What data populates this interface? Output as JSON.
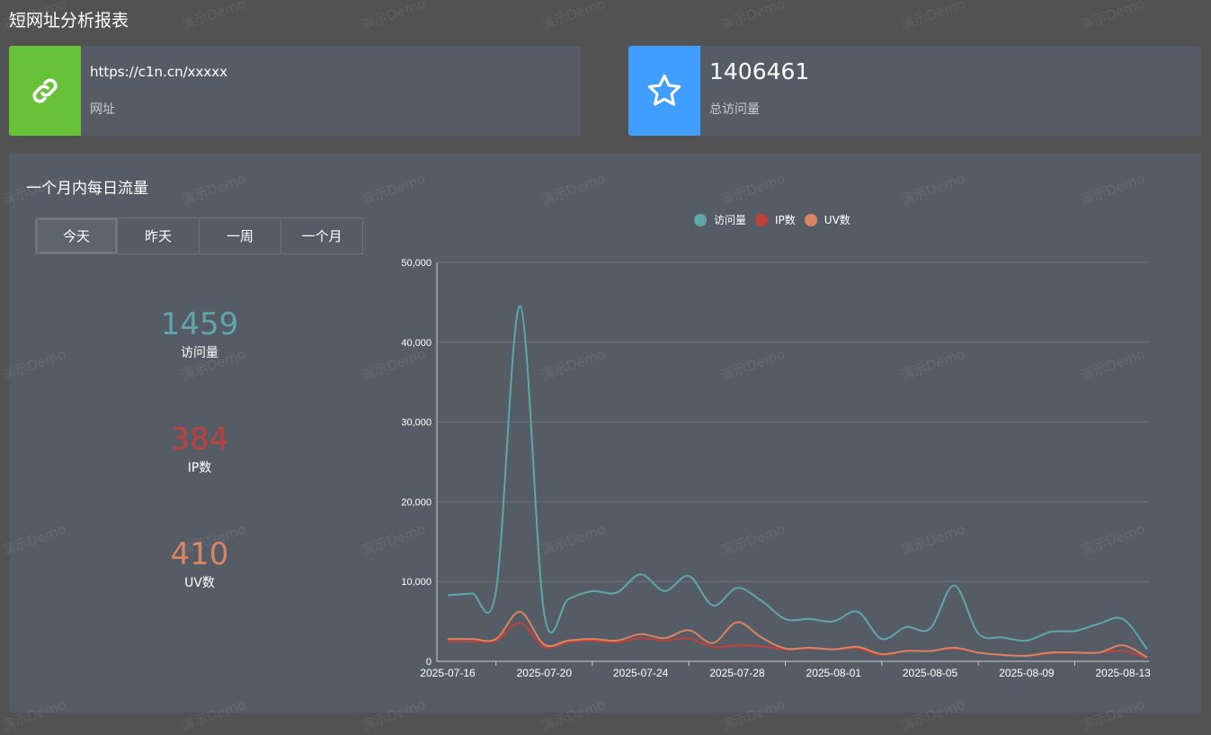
{
  "page": {
    "title": "短网址分析报表"
  },
  "url_card": {
    "value": "https://c1n.cn/xxxxx",
    "label": "网址",
    "icon": "link-icon",
    "color": "#67c23a"
  },
  "visits_card": {
    "value": "1406461",
    "label": "总访问量",
    "icon": "star-icon",
    "color": "#409eff"
  },
  "panel": {
    "title": "一个月内每日流量",
    "tabs": [
      {
        "label": "今天",
        "active": true
      },
      {
        "label": "昨天",
        "active": false
      },
      {
        "label": "一周",
        "active": false
      },
      {
        "label": "一个月",
        "active": false
      }
    ],
    "stats": [
      {
        "value": "1459",
        "label": "访问量",
        "color": "#5fa5aa"
      },
      {
        "value": "384",
        "label": "IP数",
        "color": "#c0403a"
      },
      {
        "value": "410",
        "label": "UV数",
        "color": "#d98462"
      }
    ]
  },
  "watermark": "演示Demo",
  "chart_data": {
    "type": "line",
    "legend_position": "top-center",
    "grid": true,
    "ylim": [
      0,
      50000
    ],
    "y_ticks": [
      "0",
      "10,000",
      "20,000",
      "30,000",
      "40,000",
      "50,000"
    ],
    "x_tick_labels": [
      "2025-07-16",
      "2025-07-20",
      "2025-07-24",
      "2025-07-28",
      "2025-08-01",
      "2025-08-05",
      "2025-08-09",
      "2025-08-13"
    ],
    "x": [
      "2025-07-16",
      "2025-07-17",
      "2025-07-18",
      "2025-07-19",
      "2025-07-20",
      "2025-07-21",
      "2025-07-22",
      "2025-07-23",
      "2025-07-24",
      "2025-07-25",
      "2025-07-26",
      "2025-07-27",
      "2025-07-28",
      "2025-07-29",
      "2025-07-30",
      "2025-07-31",
      "2025-08-01",
      "2025-08-02",
      "2025-08-03",
      "2025-08-04",
      "2025-08-05",
      "2025-08-06",
      "2025-08-07",
      "2025-08-08",
      "2025-08-09",
      "2025-08-10",
      "2025-08-11",
      "2025-08-12",
      "2025-08-13",
      "2025-08-14"
    ],
    "series": [
      {
        "name": "访问量",
        "color": "#5fa5aa",
        "values": [
          8300,
          8500,
          8800,
          44500,
          6000,
          7800,
          8800,
          8600,
          10900,
          8800,
          10700,
          7000,
          9200,
          7600,
          5300,
          5300,
          5000,
          6200,
          2800,
          4300,
          4100,
          9500,
          3500,
          3000,
          2600,
          3700,
          3800,
          4700,
          5300,
          1500
        ]
      },
      {
        "name": "IP数",
        "color": "#c0403a",
        "values": [
          2500,
          2500,
          2600,
          4800,
          1800,
          2400,
          2600,
          2400,
          2900,
          2600,
          2900,
          1800,
          2000,
          1900,
          1500,
          1600,
          1500,
          1600,
          800,
          1300,
          1300,
          1600,
          1100,
          800,
          700,
          1000,
          1100,
          1100,
          1300,
          400
        ]
      },
      {
        "name": "UV数",
        "color": "#d98462",
        "values": [
          2800,
          2800,
          2800,
          6200,
          2100,
          2600,
          2800,
          2600,
          3400,
          2900,
          3900,
          2300,
          4900,
          3000,
          1600,
          1700,
          1500,
          1800,
          900,
          1300,
          1300,
          1700,
          1100,
          800,
          700,
          1100,
          1100,
          1100,
          2000,
          500
        ]
      }
    ]
  }
}
